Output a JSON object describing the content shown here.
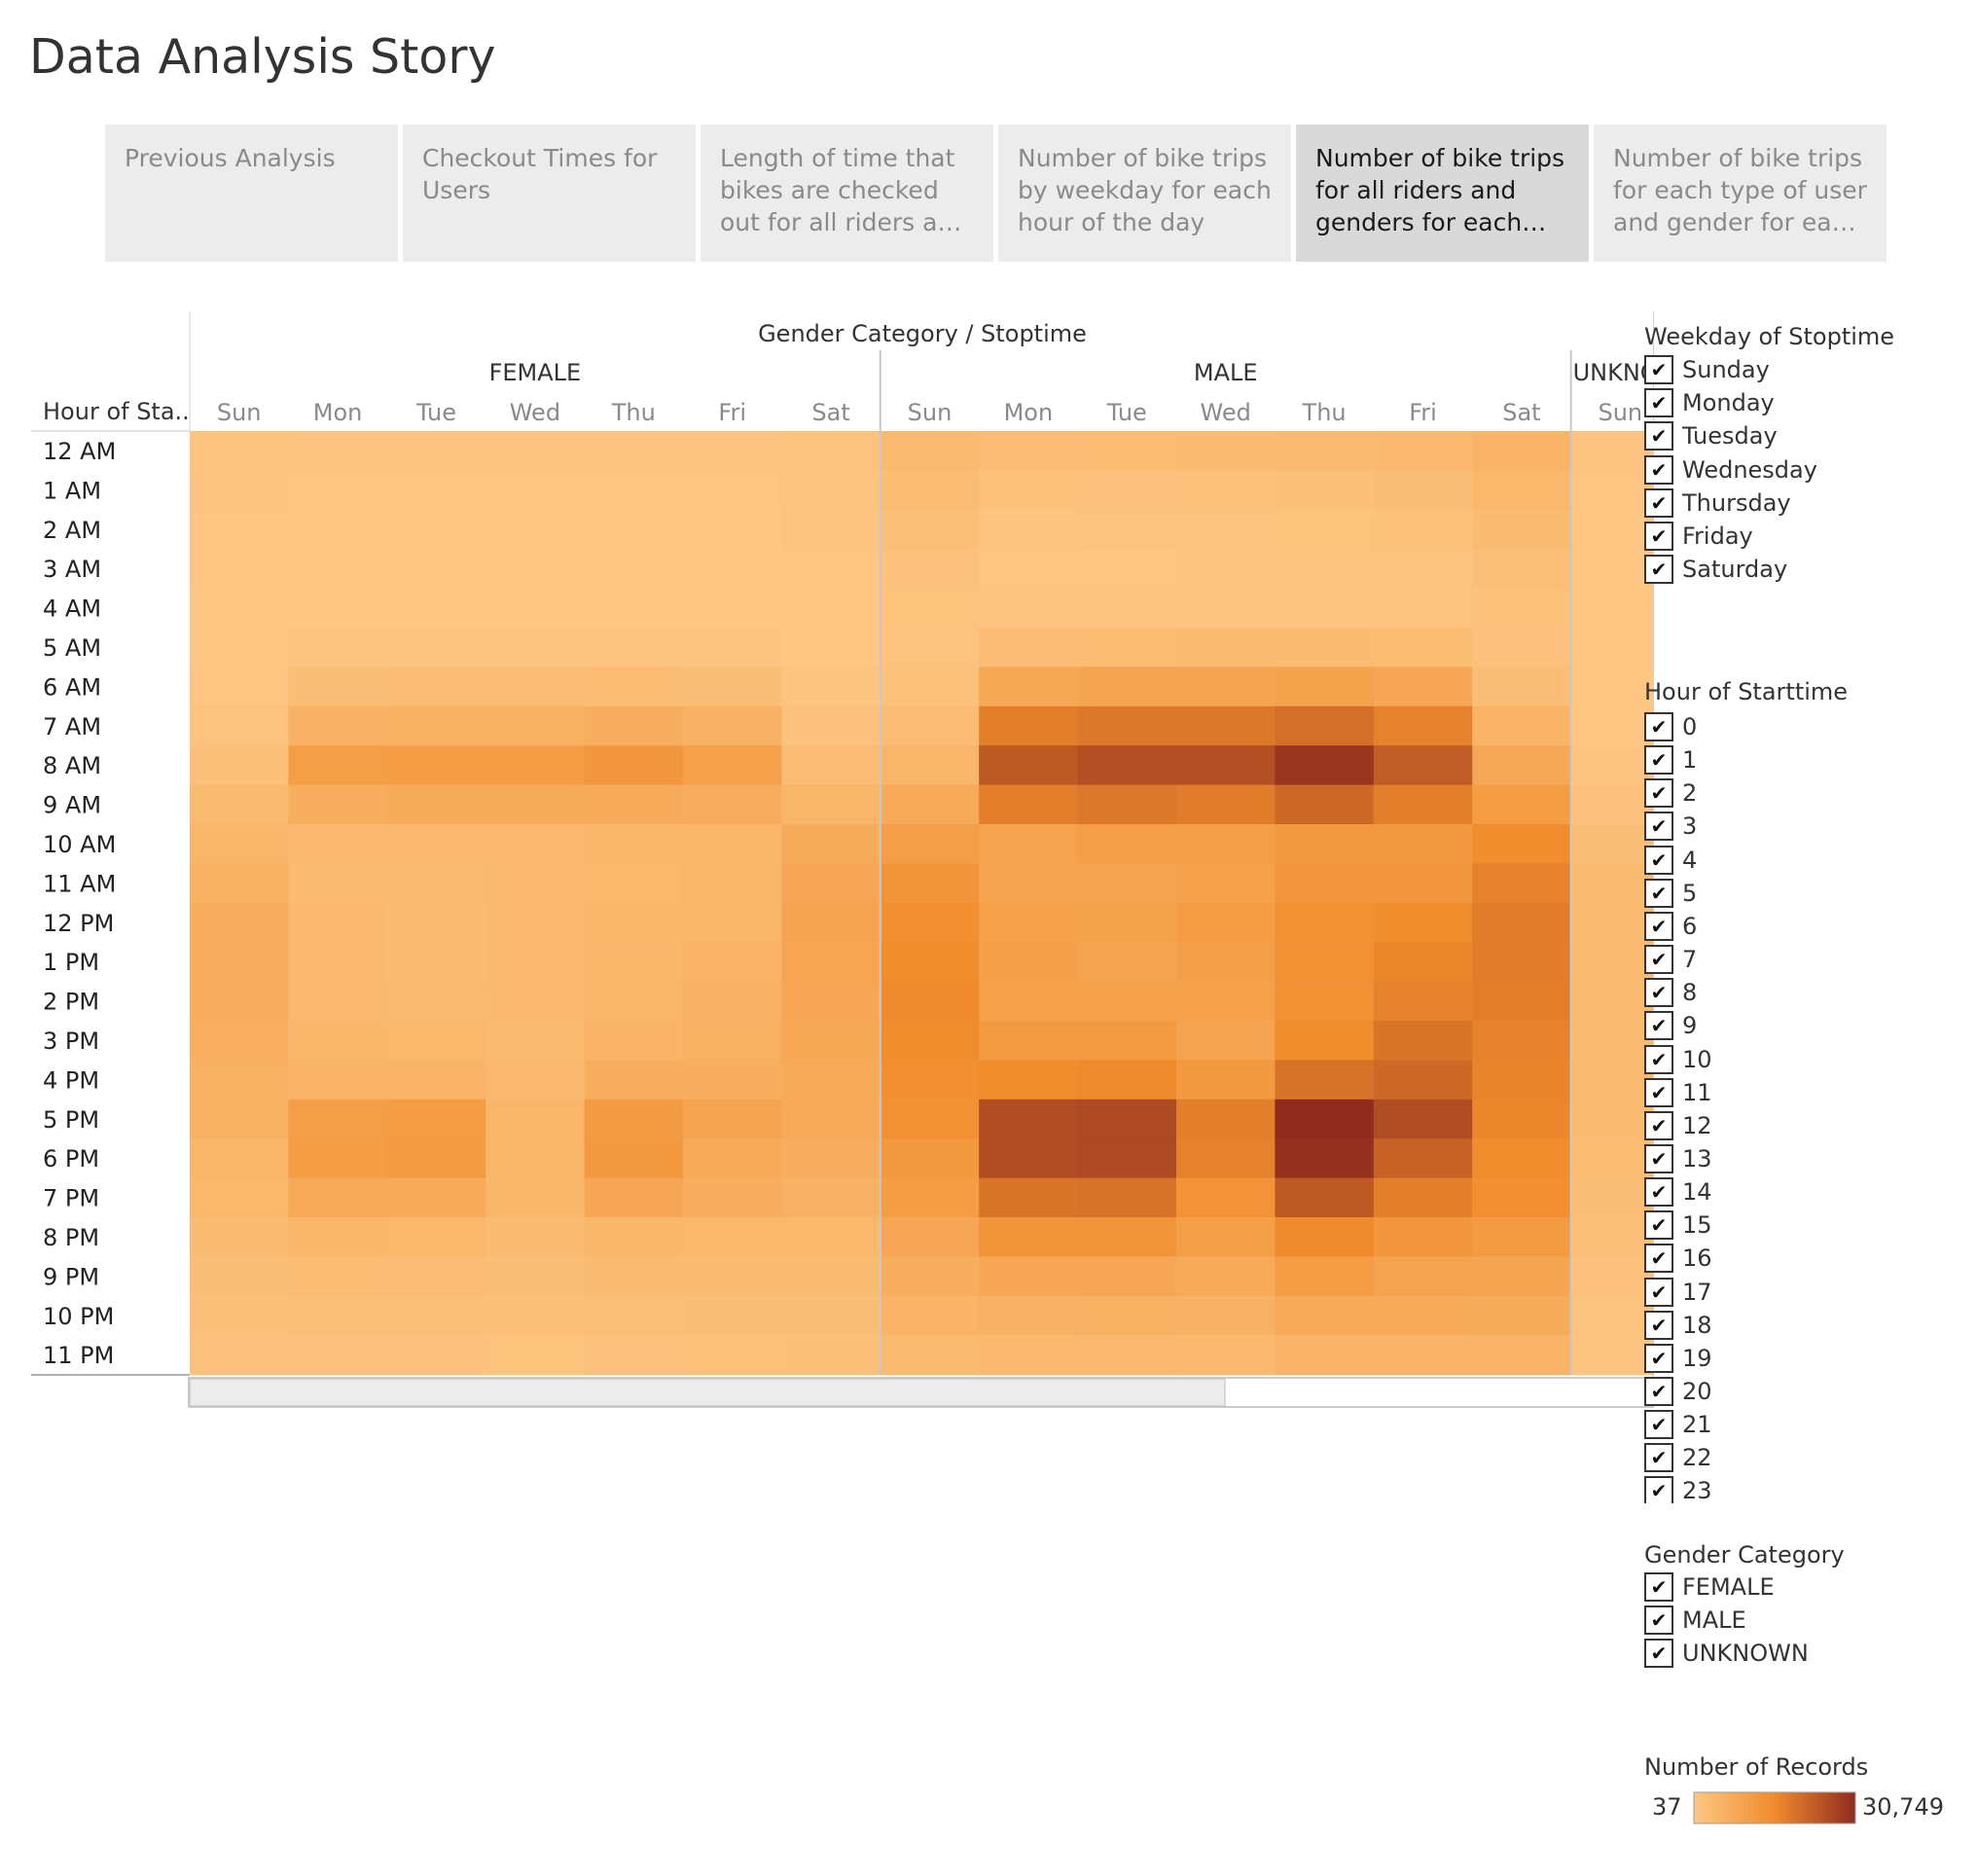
{
  "story": {
    "title": "Data Analysis Story",
    "tabs": [
      {
        "label": "Previous Analysis",
        "active": false
      },
      {
        "label": "Checkout Times for Users",
        "active": false
      },
      {
        "label": "Length of time that bikes are checked out for all riders and gen..",
        "active": false
      },
      {
        "label": "Number of bike trips by weekday for each hour of the day",
        "active": false
      },
      {
        "label": "Number of bike trips for all riders and genders for each hour..",
        "active": true
      },
      {
        "label": "Number of bike trips for each type of user and gender for each d..",
        "active": false
      }
    ]
  },
  "filters": {
    "weekday": {
      "title": "Weekday of Stoptime",
      "items": [
        "Sunday",
        "Monday",
        "Tuesday",
        "Wednesday",
        "Thursday",
        "Friday",
        "Saturday"
      ]
    },
    "hour": {
      "title": "Hour of Starttime",
      "items": [
        "0",
        "1",
        "2",
        "3",
        "4",
        "5",
        "6",
        "7",
        "8",
        "9",
        "10",
        "11",
        "12",
        "13",
        "14",
        "15",
        "16",
        "17",
        "18",
        "19",
        "20",
        "21",
        "22",
        "23"
      ]
    },
    "gender": {
      "title": "Gender Category",
      "items": [
        "FEMALE",
        "MALE",
        "UNKNOWN"
      ]
    },
    "legend": {
      "title": "Number of Records",
      "min_label": "37",
      "max_label": "30,749",
      "min": 37,
      "max": 30749,
      "colors": [
        "#fdc784",
        "#f08c2c",
        "#8f2b1f"
      ]
    }
  },
  "chart_data": {
    "type": "heatmap",
    "column_header": "Gender Category  /  Stoptime",
    "row_header": "Hour of Sta..",
    "rows": [
      "12 AM",
      "1 AM",
      "2 AM",
      "3 AM",
      "4 AM",
      "5 AM",
      "6 AM",
      "7 AM",
      "8 AM",
      "9 AM",
      "10 AM",
      "11 AM",
      "12 PM",
      "1 PM",
      "2 PM",
      "3 PM",
      "4 PM",
      "5 PM",
      "6 PM",
      "7 PM",
      "8 PM",
      "9 PM",
      "10 PM",
      "11 PM"
    ],
    "groups": [
      {
        "name": "FEMALE",
        "days": [
          "Sun",
          "Mon",
          "Tue",
          "Wed",
          "Thu",
          "Fri",
          "Sat"
        ],
        "values": [
          [
            900,
            700,
            700,
            700,
            800,
            800,
            1100
          ],
          [
            700,
            500,
            500,
            500,
            500,
            500,
            900
          ],
          [
            600,
            400,
            400,
            400,
            400,
            400,
            700
          ],
          [
            500,
            300,
            300,
            300,
            300,
            300,
            500
          ],
          [
            400,
            300,
            300,
            300,
            300,
            300,
            400
          ],
          [
            400,
            800,
            800,
            800,
            800,
            800,
            400
          ],
          [
            600,
            2500,
            2700,
            2700,
            2800,
            2500,
            800
          ],
          [
            1000,
            5500,
            6000,
            6000,
            6500,
            5500,
            1500
          ],
          [
            1800,
            10500,
            11000,
            11000,
            12500,
            10000,
            2700
          ],
          [
            3500,
            6500,
            7000,
            7000,
            7500,
            6800,
            4500
          ],
          [
            4800,
            3800,
            3800,
            3800,
            4200,
            4200,
            7000
          ],
          [
            5800,
            3500,
            3500,
            3800,
            4000,
            4400,
            8500
          ],
          [
            6500,
            3700,
            3200,
            3700,
            4200,
            4800,
            9000
          ],
          [
            6500,
            3700,
            3200,
            3700,
            4300,
            5000,
            8800
          ],
          [
            6500,
            3800,
            3500,
            3700,
            4500,
            5500,
            8500
          ],
          [
            6300,
            4200,
            4000,
            3500,
            5000,
            6000,
            8200
          ],
          [
            6000,
            5000,
            5000,
            3800,
            6500,
            6500,
            7700
          ],
          [
            5800,
            10500,
            11000,
            4500,
            11500,
            9000,
            7300
          ],
          [
            4800,
            11000,
            11500,
            4500,
            12000,
            7500,
            6500
          ],
          [
            4000,
            7500,
            7200,
            4300,
            8500,
            6500,
            5500
          ],
          [
            3000,
            4200,
            4000,
            3000,
            4200,
            4000,
            4000
          ],
          [
            2300,
            2800,
            2700,
            2500,
            3000,
            3000,
            3200
          ],
          [
            1800,
            2000,
            2000,
            1800,
            2200,
            2300,
            2500
          ],
          [
            1300,
            1300,
            1300,
            1200,
            1500,
            1700,
            1900
          ]
        ]
      },
      {
        "name": "MALE",
        "days": [
          "Sun",
          "Mon",
          "Tue",
          "Wed",
          "Thu",
          "Fri",
          "Sat"
        ],
        "values": [
          [
            3500,
            2700,
            2800,
            3000,
            3300,
            3700,
            5000
          ],
          [
            2800,
            1400,
            1500,
            1700,
            1900,
            2400,
            4000
          ],
          [
            2200,
            900,
            1000,
            1100,
            1200,
            1600,
            3000
          ],
          [
            1500,
            600,
            600,
            700,
            800,
            1000,
            2200
          ],
          [
            1200,
            700,
            700,
            700,
            800,
            900,
            1600
          ],
          [
            1100,
            2700,
            2900,
            3000,
            3100,
            2900,
            1300
          ],
          [
            1600,
            8200,
            9000,
            9000,
            9700,
            8500,
            2300
          ],
          [
            2700,
            17500,
            18500,
            18500,
            20000,
            17000,
            5000
          ],
          [
            4500,
            23500,
            25000,
            25000,
            29000,
            23000,
            8000
          ],
          [
            7500,
            17500,
            18500,
            18000,
            21000,
            17500,
            11000
          ],
          [
            10500,
            9500,
            10500,
            10500,
            12000,
            12000,
            15000
          ],
          [
            13000,
            9000,
            9500,
            10000,
            12500,
            12500,
            17000
          ],
          [
            14500,
            10000,
            9700,
            11000,
            14000,
            15000,
            18000
          ],
          [
            15000,
            10300,
            9500,
            10500,
            14000,
            16000,
            18000
          ],
          [
            15500,
            10000,
            10000,
            10000,
            14000,
            17000,
            17500
          ],
          [
            15000,
            11500,
            11500,
            9500,
            15000,
            19000,
            17000
          ],
          [
            14500,
            15000,
            15500,
            12000,
            19500,
            21000,
            16500
          ],
          [
            14000,
            25500,
            26000,
            17500,
            30749,
            25500,
            16000
          ],
          [
            12000,
            25500,
            26000,
            17000,
            30000,
            22000,
            15000
          ],
          [
            11000,
            19000,
            19500,
            13500,
            23500,
            17500,
            14500
          ],
          [
            8500,
            13000,
            13000,
            10500,
            15500,
            12500,
            11500
          ],
          [
            6500,
            8500,
            8500,
            7500,
            11000,
            9500,
            9000
          ],
          [
            5000,
            5500,
            6000,
            5500,
            7500,
            7500,
            7000
          ],
          [
            3500,
            3800,
            3800,
            3700,
            5000,
            5000,
            5000
          ]
        ]
      },
      {
        "name": "UNKNO",
        "days": [
          "Sun"
        ],
        "values": [
          [
            700
          ],
          [
            500
          ],
          [
            400
          ],
          [
            300
          ],
          [
            200
          ],
          [
            200
          ],
          [
            300
          ],
          [
            400
          ],
          [
            700
          ],
          [
            1500
          ],
          [
            2500
          ],
          [
            3000
          ],
          [
            3200
          ],
          [
            3300
          ],
          [
            3400
          ],
          [
            3400
          ],
          [
            3300
          ],
          [
            3200
          ],
          [
            2800
          ],
          [
            2500
          ],
          [
            2000
          ],
          [
            1500
          ],
          [
            1000
          ],
          [
            700
          ]
        ]
      }
    ]
  }
}
